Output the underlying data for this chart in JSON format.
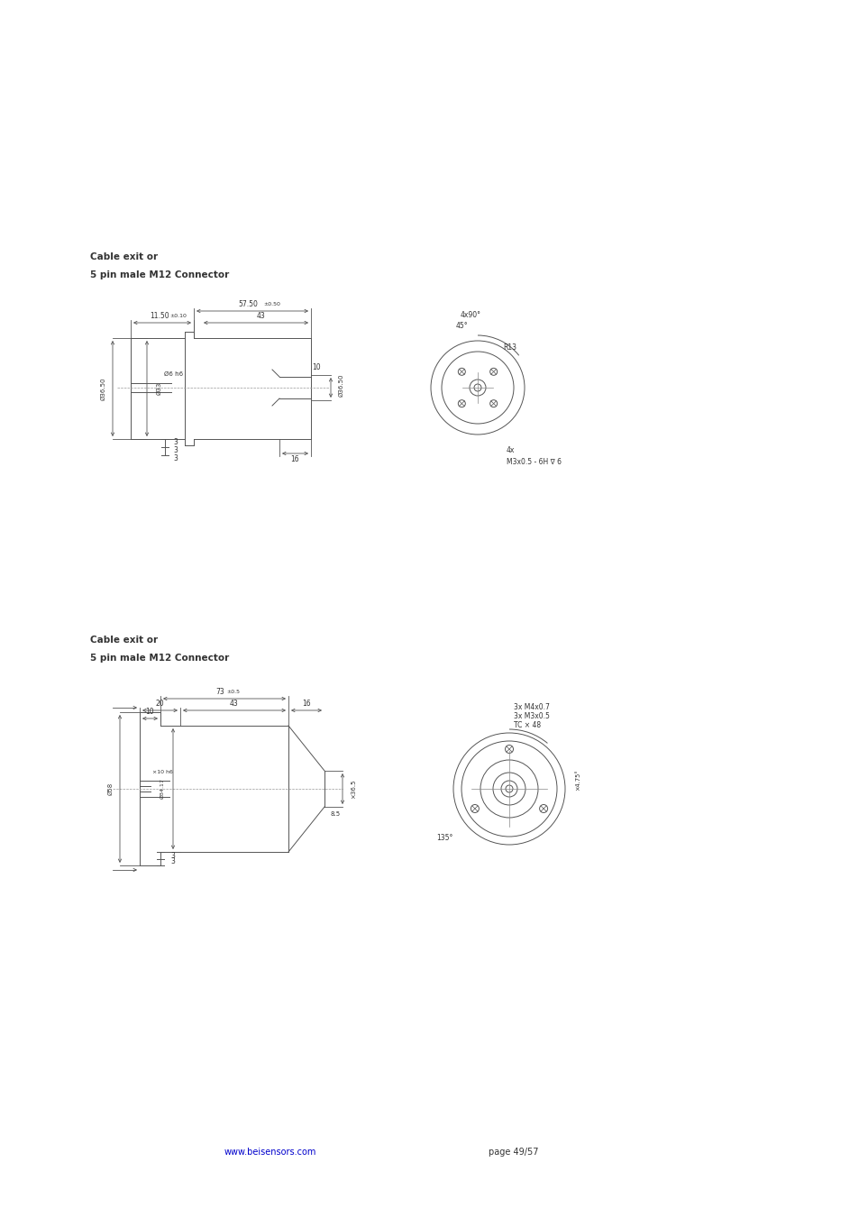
{
  "page_bg": "#ffffff",
  "line_color": "#555555",
  "text_color": "#333333",
  "dim_color": "#555555",
  "title1": "Cable exit or",
  "title1b": "5 pin male M12 Connector",
  "title2": "Cable exit or",
  "title2b": "5 pin male M12 Connector",
  "website": "www.beisensors.com",
  "page_text": "page 49/57",
  "website_color": "#0000cc"
}
